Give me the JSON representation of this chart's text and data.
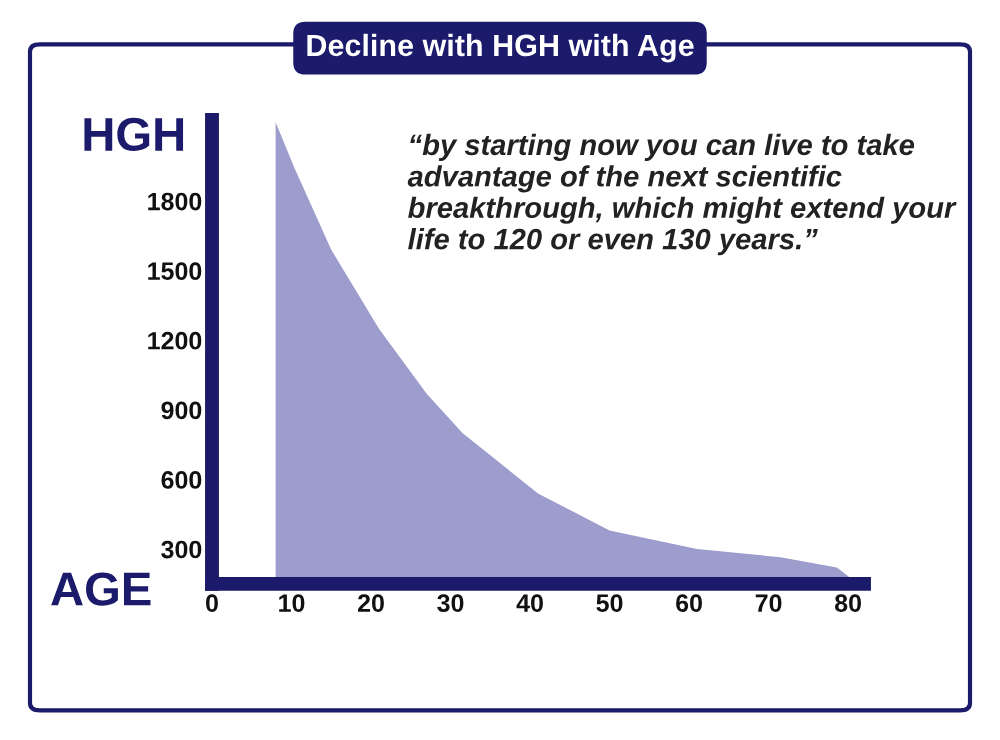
{
  "chart_data": {
    "type": "area",
    "title": "Decline with HGH with Age",
    "xlabel": "AGE",
    "ylabel": "HGH",
    "annotations": [
      "“by starting now you can live to take advantage of the next scientific breakthrough, which might extend your life to 120 or even 130 years.”"
    ],
    "x": [
      8,
      10.4,
      15,
      21,
      27,
      31.5,
      41,
      50,
      61,
      71.5,
      78.6,
      80.5
    ],
    "series": [
      {
        "color": "#9c9dcc",
        "values": [
          2140,
          1940,
          1590,
          1250,
          970,
          800,
          540,
          380,
          300,
          265,
          220,
          170
        ]
      }
    ],
    "xlim": [
      0,
      82
    ],
    "xticks": [
      0,
      10,
      20,
      30,
      40,
      50,
      60,
      70,
      80
    ],
    "ylim": [
      150,
      2150
    ],
    "yticks": [
      300,
      600,
      900,
      1200,
      1500,
      1800
    ],
    "grid": false,
    "legend": false
  }
}
